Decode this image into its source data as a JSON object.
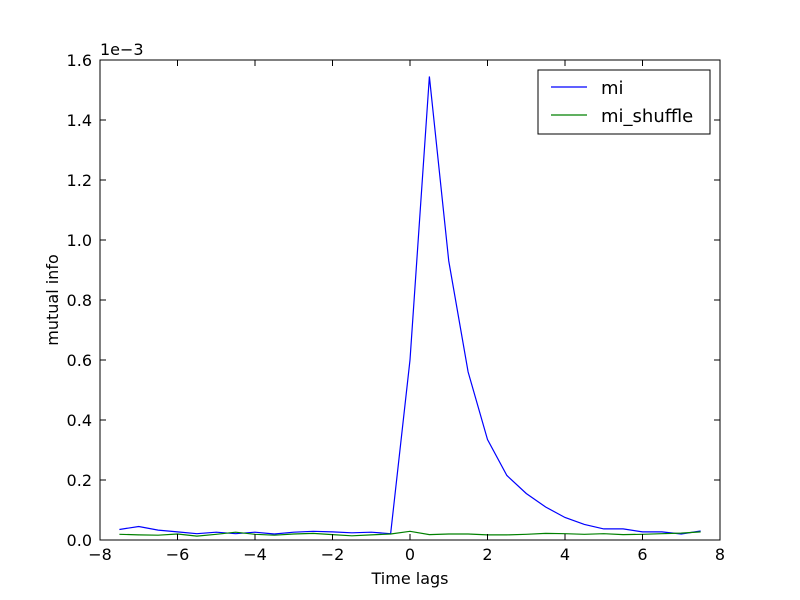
{
  "chart_data": {
    "type": "line",
    "title": "",
    "xlabel": "Time lags",
    "ylabel": "mutual info",
    "y_scale_label": "1e−3",
    "xlim": [
      -8,
      8
    ],
    "ylim": [
      0,
      1.6
    ],
    "xticks": [
      -8,
      -6,
      -4,
      -2,
      0,
      2,
      4,
      6,
      8
    ],
    "yticks": [
      0.0,
      0.2,
      0.4,
      0.6,
      0.8,
      1.0,
      1.2,
      1.4,
      1.6
    ],
    "xtick_labels": [
      "−8",
      "−6",
      "−4",
      "−2",
      "0",
      "2",
      "4",
      "6",
      "8"
    ],
    "ytick_labels": [
      "0.0",
      "0.2",
      "0.4",
      "0.6",
      "0.8",
      "1.0",
      "1.2",
      "1.4",
      "1.6"
    ],
    "grid": false,
    "legend_position": "top-right",
    "x": [
      -7.5,
      -7.0,
      -6.5,
      -6.0,
      -5.5,
      -5.0,
      -4.5,
      -4.0,
      -3.5,
      -3.0,
      -2.5,
      -2.0,
      -1.5,
      -1.0,
      -0.5,
      0.0,
      0.5,
      1.0,
      1.5,
      2.0,
      2.5,
      3.0,
      3.5,
      4.0,
      4.5,
      5.0,
      5.5,
      6.0,
      6.5,
      7.0,
      7.5
    ],
    "series": [
      {
        "name": "mi",
        "color": "#0000ff",
        "values": [
          0.035,
          0.045,
          0.033,
          0.027,
          0.021,
          0.026,
          0.021,
          0.026,
          0.02,
          0.026,
          0.029,
          0.027,
          0.024,
          0.026,
          0.021,
          0.6,
          1.545,
          0.93,
          0.56,
          0.335,
          0.215,
          0.155,
          0.11,
          0.075,
          0.052,
          0.037,
          0.037,
          0.027,
          0.027,
          0.02,
          0.03
        ]
      },
      {
        "name": "mi_shuffle",
        "color": "#008000",
        "values": [
          0.019,
          0.017,
          0.016,
          0.02,
          0.013,
          0.019,
          0.026,
          0.019,
          0.016,
          0.02,
          0.022,
          0.018,
          0.014,
          0.017,
          0.02,
          0.029,
          0.018,
          0.02,
          0.02,
          0.017,
          0.017,
          0.019,
          0.022,
          0.021,
          0.019,
          0.021,
          0.018,
          0.019,
          0.021,
          0.023,
          0.027
        ]
      }
    ]
  }
}
